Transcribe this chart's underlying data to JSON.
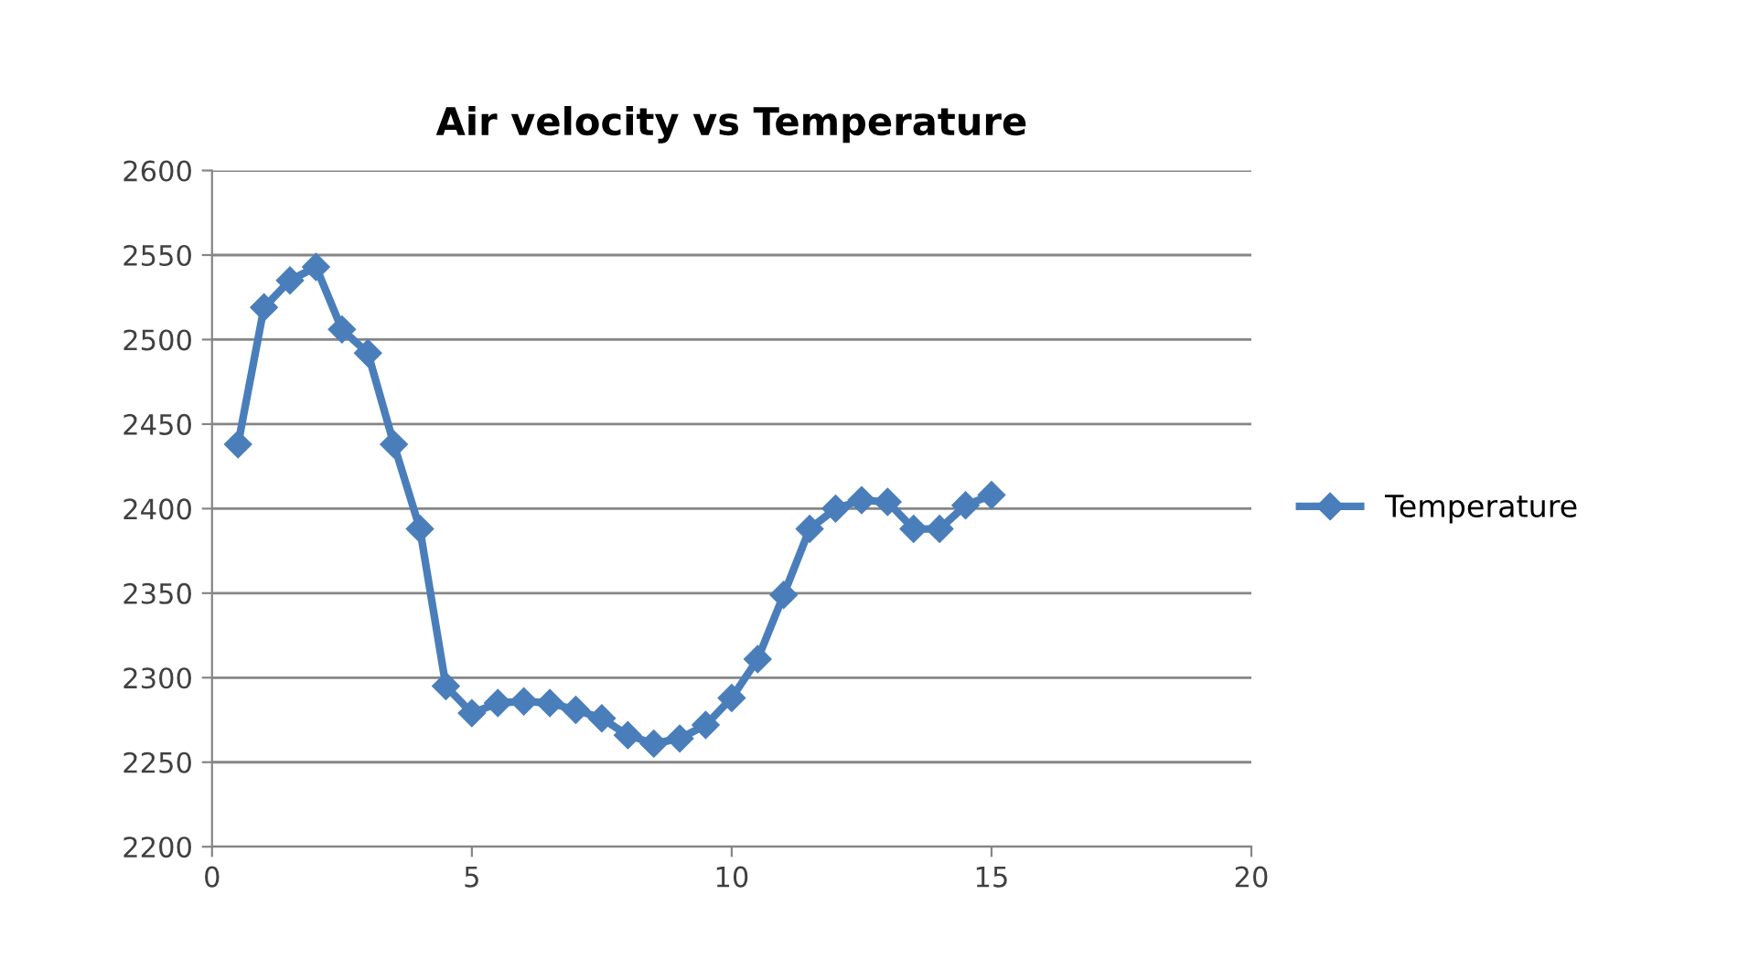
{
  "chart_data": {
    "type": "line",
    "title": "Air velocity vs Temperature",
    "x": [
      0.5,
      1,
      1.5,
      2,
      2.5,
      3,
      3.5,
      4,
      4.5,
      5,
      5.5,
      6,
      6.5,
      7,
      7.5,
      8,
      8.5,
      9,
      9.5,
      10,
      10.5,
      11,
      11.5,
      12,
      12.5,
      13,
      13.5,
      14,
      14.5,
      15
    ],
    "series": [
      {
        "name": "Temperature",
        "color": "#4a7ebb",
        "values": [
          2438,
          2519,
          2535,
          2543,
          2506,
          2492,
          2438,
          2388,
          2295,
          2279,
          2285,
          2286,
          2285,
          2281,
          2276,
          2266,
          2261,
          2264,
          2272,
          2288,
          2311,
          2349,
          2388,
          2400,
          2405,
          2404,
          2388,
          2388,
          2402,
          2408
        ]
      }
    ],
    "xlim": [
      0,
      20
    ],
    "xticks": [
      0,
      5,
      10,
      15,
      20
    ],
    "ylim": [
      2200,
      2600
    ],
    "yticks": [
      2200,
      2250,
      2300,
      2350,
      2400,
      2450,
      2500,
      2550,
      2600
    ],
    "grid": "y",
    "legend": "right",
    "marker": "diamond",
    "line_style": "solid"
  }
}
